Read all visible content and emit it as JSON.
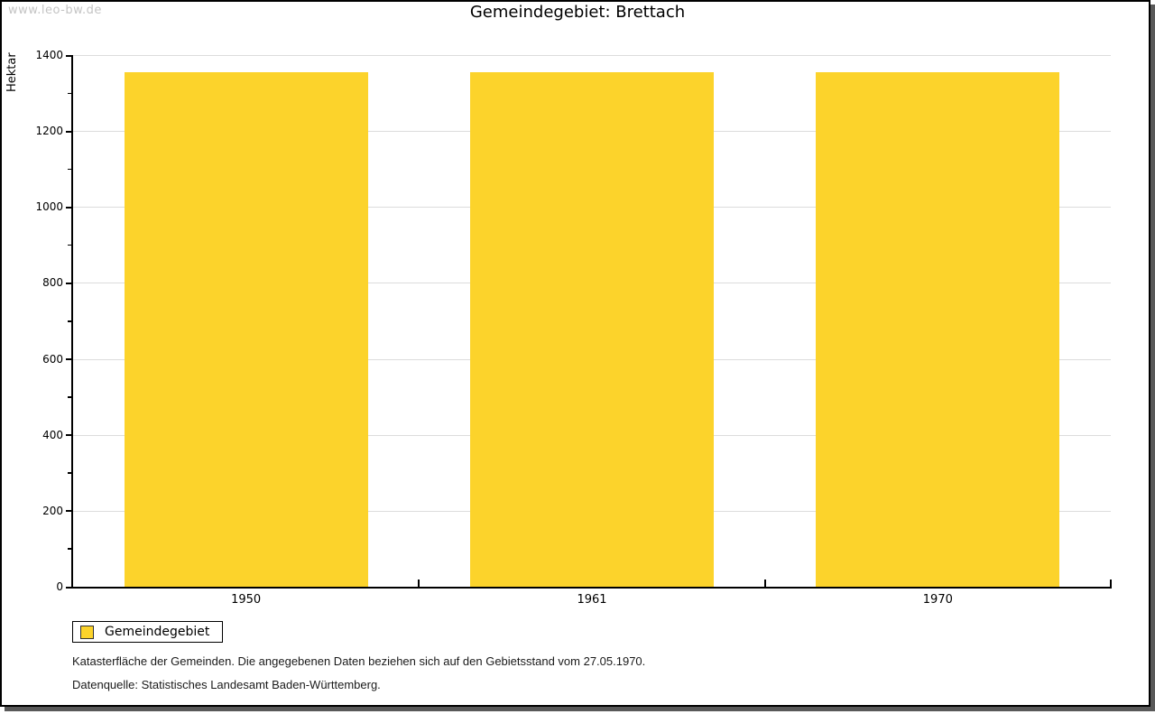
{
  "watermark": "www.leo-bw.de",
  "title": "Gemeindegebiet: Brettach",
  "chart_data": {
    "type": "bar",
    "title": "Gemeindegebiet: Brettach",
    "xlabel": "",
    "ylabel": "Hektar",
    "categories": [
      "1950",
      "1961",
      "1970"
    ],
    "series": [
      {
        "name": "Gemeindegebiet",
        "values": [
          1354,
          1354,
          1354
        ]
      }
    ],
    "ylim": [
      0,
      1400
    ],
    "ytick_step": 200,
    "yminor_step": 100,
    "grid": "horizontal-major",
    "legend_position": "bottom-left",
    "bar_color": "#FCD32B"
  },
  "legend": {
    "items": [
      {
        "label": "Gemeindegebiet",
        "color": "#FCD32B"
      }
    ]
  },
  "footer": {
    "line1": "Katasterfläche der Gemeinden. Die angegebenen Daten beziehen sich auf den Gebietsstand vom 27.05.1970.",
    "line2": "Datenquelle: Statistisches Landesamt Baden-Württemberg."
  },
  "colors": {
    "bar": "#FCD32B",
    "gridline": "#DCDCDC",
    "axis": "#000000",
    "watermark": "#C4C4C4",
    "frame_shadow": "#595959",
    "legend_swatch_border": "#333333"
  }
}
